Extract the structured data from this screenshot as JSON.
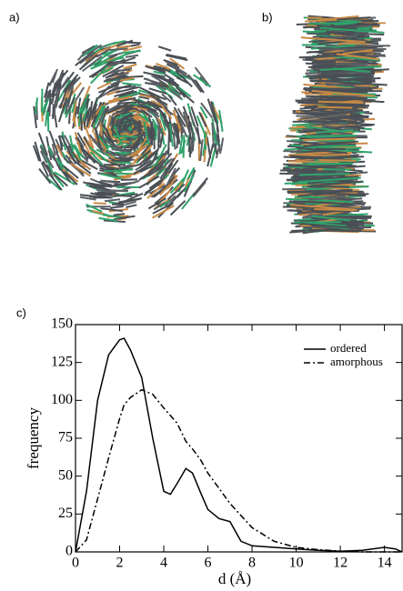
{
  "panel_labels": [
    "a)",
    "b)",
    "c)"
  ],
  "chart_data": {
    "type": "line",
    "xlabel": "d (Å)",
    "ylabel": "frequency",
    "x": [
      0,
      0.5,
      1,
      1.5,
      2,
      2.2,
      2.5,
      3,
      3.5,
      4,
      4.3,
      4.6,
      5,
      5.3,
      5.7,
      6,
      6.5,
      7,
      7.5,
      8,
      9,
      10,
      11,
      12,
      13,
      14,
      14.5,
      14.8
    ],
    "series": [
      {
        "name": "ordered",
        "color": "#000000",
        "style": "solid",
        "values": [
          0,
          40,
          100,
          130,
          140,
          141,
          133,
          115,
          75,
          40,
          38,
          45,
          55,
          52,
          38,
          28,
          22,
          20,
          7,
          4,
          3,
          2,
          1,
          0.5,
          1,
          3,
          2,
          0
        ]
      },
      {
        "name": "amorphous",
        "color": "#000000",
        "style": "dashdot",
        "values": [
          0,
          8,
          35,
          62,
          88,
          97,
          102,
          107,
          104,
          95,
          90,
          85,
          73,
          68,
          60,
          52,
          42,
          32,
          24,
          16,
          7,
          3,
          1.5,
          0.5,
          0,
          0,
          0,
          0
        ]
      }
    ],
    "xlim": [
      0,
      14.8
    ],
    "ylim": [
      0,
      150
    ],
    "xticks": [
      0,
      2,
      4,
      6,
      8,
      10,
      12,
      14
    ],
    "yticks": [
      0,
      25,
      50,
      75,
      100,
      125,
      150
    ],
    "legend": "upper right"
  }
}
